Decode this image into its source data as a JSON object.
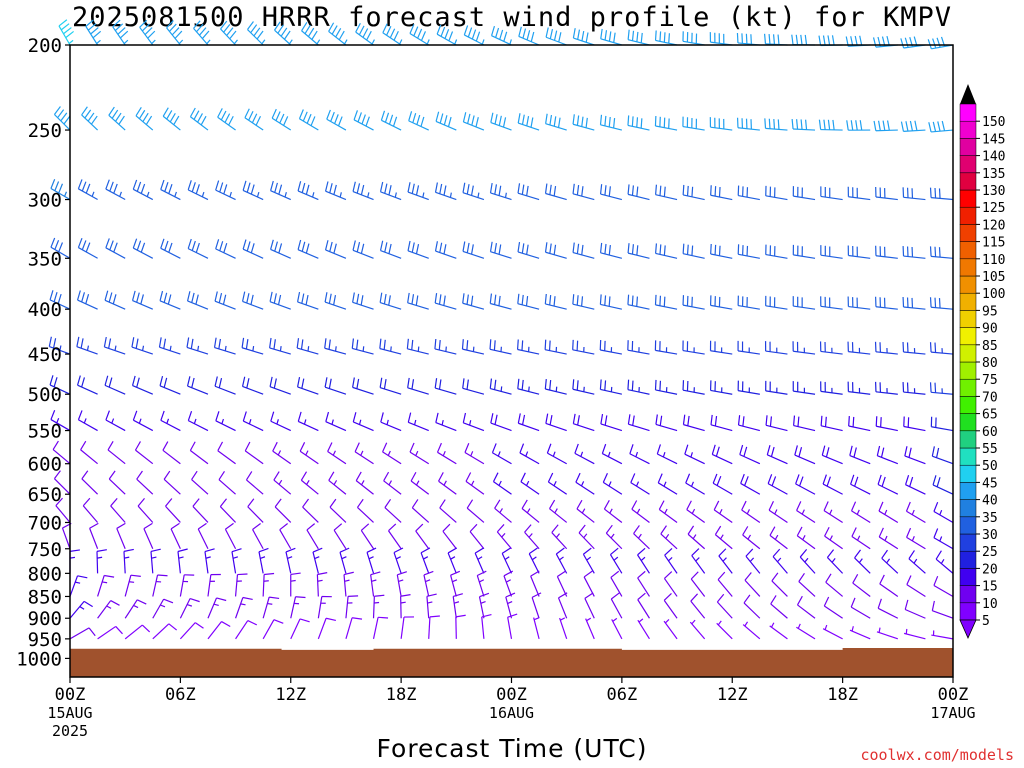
{
  "chart_data": {
    "type": "wind-barb time-height",
    "title": "2025081500 HRRR forecast wind profile (kt) for KMPV",
    "xlabel": "Forecast Time (UTC)",
    "credit": "coolwx.com/models",
    "y_axis": {
      "pressure_levels_hPa": [
        200,
        250,
        300,
        350,
        400,
        450,
        500,
        550,
        600,
        650,
        700,
        750,
        800,
        850,
        900,
        950,
        1000
      ],
      "inverted": true,
      "scale": "log-pressure"
    },
    "x_axis": {
      "range_hours": [
        0,
        48
      ],
      "ticks": [
        {
          "hour": 0,
          "labels": [
            "00Z",
            "15AUG",
            "2025"
          ]
        },
        {
          "hour": 6,
          "labels": [
            "06Z"
          ]
        },
        {
          "hour": 12,
          "labels": [
            "12Z"
          ]
        },
        {
          "hour": 18,
          "labels": [
            "18Z"
          ]
        },
        {
          "hour": 24,
          "labels": [
            "00Z",
            "16AUG"
          ]
        },
        {
          "hour": 30,
          "labels": [
            "06Z"
          ]
        },
        {
          "hour": 36,
          "labels": [
            "12Z"
          ]
        },
        {
          "hour": 42,
          "labels": [
            "18Z"
          ]
        },
        {
          "hour": 48,
          "labels": [
            "00Z",
            "17AUG"
          ]
        }
      ]
    },
    "colorbar": {
      "units": "kt",
      "labels": [
        150,
        145,
        140,
        135,
        130,
        125,
        120,
        115,
        110,
        105,
        100,
        95,
        90,
        85,
        80,
        75,
        70,
        65,
        60,
        55,
        50,
        45,
        40,
        35,
        30,
        25,
        20,
        15,
        10,
        5
      ],
      "colors": [
        "#ff00ff",
        "#f000d0",
        "#e000a0",
        "#e00070",
        "#e00040",
        "#ff0000",
        "#f02000",
        "#f04000",
        "#f06000",
        "#f07800",
        "#f09000",
        "#f0b000",
        "#f0d000",
        "#f0f000",
        "#d0f000",
        "#a0f000",
        "#70f000",
        "#40f000",
        "#20e020",
        "#20d080",
        "#20e0c0",
        "#20d0f0",
        "#20a0f0",
        "#2080e0",
        "#2060e0",
        "#2040e0",
        "#2020e0",
        "#4000f0",
        "#7000f0",
        "#8000ff"
      ]
    },
    "terrain": {
      "color": "#a0522d",
      "surface_pressure_hPa": [
        {
          "hour": 0,
          "p": 975
        },
        {
          "hour": 11.5,
          "p": 975
        },
        {
          "hour": 11.5,
          "p": 978
        },
        {
          "hour": 16.5,
          "p": 978
        },
        {
          "hour": 16.5,
          "p": 975
        },
        {
          "hour": 30,
          "p": 975
        },
        {
          "hour": 30,
          "p": 978
        },
        {
          "hour": 42,
          "p": 978
        },
        {
          "hour": 42,
          "p": 973
        },
        {
          "hour": 48,
          "p": 973
        }
      ]
    },
    "wind_profile": {
      "description_levels_hPa": [
        200,
        250,
        300,
        350,
        400,
        450,
        500,
        550,
        600,
        650,
        700,
        750,
        800,
        850,
        900,
        950
      ],
      "direction_deg_from": [
        {
          "level": 200,
          "start": 330,
          "end": 260
        },
        {
          "level": 250,
          "start": 315,
          "end": 265
        },
        {
          "level": 300,
          "start": 300,
          "end": 275
        },
        {
          "level": 350,
          "start": 300,
          "end": 275
        },
        {
          "level": 400,
          "start": 295,
          "end": 275
        },
        {
          "level": 450,
          "start": 290,
          "end": 275
        },
        {
          "level": 500,
          "start": 295,
          "end": 275
        },
        {
          "level": 550,
          "start": 300,
          "end": 280
        },
        {
          "level": 600,
          "start": 310,
          "end": 290
        },
        {
          "level": 650,
          "start": 315,
          "end": 295
        },
        {
          "level": 700,
          "start": 320,
          "end": 300
        },
        {
          "level": 750,
          "start": 340,
          "end": 300
        },
        {
          "level": 800,
          "start": 360,
          "end": 310
        },
        {
          "level": 850,
          "start": 20,
          "end": 300
        },
        {
          "level": 900,
          "start": 40,
          "end": 290
        },
        {
          "level": 950,
          "start": 60,
          "end": 280
        }
      ],
      "speed_kt": [
        {
          "level": 200,
          "start": 45,
          "end": 40
        },
        {
          "level": 250,
          "start": 40,
          "end": 40
        },
        {
          "level": 300,
          "start": 35,
          "end": 30
        },
        {
          "level": 350,
          "start": 30,
          "end": 30
        },
        {
          "level": 400,
          "start": 30,
          "end": 30
        },
        {
          "level": 450,
          "start": 25,
          "end": 25
        },
        {
          "level": 500,
          "start": 20,
          "end": 25
        },
        {
          "level": 550,
          "start": 15,
          "end": 20
        },
        {
          "level": 600,
          "start": 10,
          "end": 20
        },
        {
          "level": 650,
          "start": 10,
          "end": 20
        },
        {
          "level": 700,
          "start": 10,
          "end": 15
        },
        {
          "level": 750,
          "start": 10,
          "end": 15
        },
        {
          "level": 800,
          "start": 15,
          "end": 15
        },
        {
          "level": 850,
          "start": 15,
          "end": 10
        },
        {
          "level": 900,
          "start": 15,
          "end": 10
        },
        {
          "level": 950,
          "start": 10,
          "end": 5
        }
      ]
    }
  }
}
